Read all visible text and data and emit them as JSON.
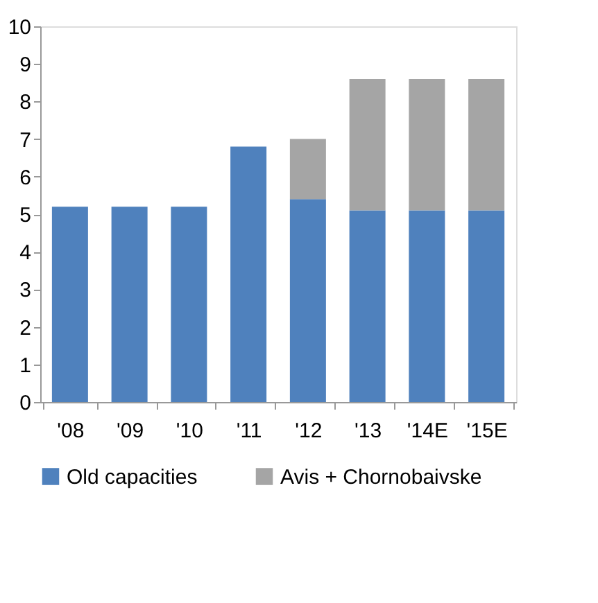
{
  "chart_data": {
    "type": "bar",
    "stacked": true,
    "categories": [
      "'08",
      "'09",
      "'10",
      "'11",
      "'12",
      "'13",
      "'14E",
      "'15E"
    ],
    "series": [
      {
        "name": "Old capacities",
        "color": "#4f81bd",
        "values": [
          5.2,
          5.2,
          5.2,
          6.8,
          5.4,
          5.1,
          5.1,
          5.1
        ]
      },
      {
        "name": "Avis + Chornobaivske",
        "color": "#a5a5a5",
        "values": [
          null,
          null,
          null,
          null,
          1.6,
          3.5,
          3.5,
          3.5
        ]
      }
    ],
    "ylim": [
      0,
      10
    ],
    "yticks": [
      0,
      1,
      2,
      3,
      4,
      5,
      6,
      7,
      8,
      9,
      10
    ],
    "grid": false,
    "legend": "bottom"
  }
}
